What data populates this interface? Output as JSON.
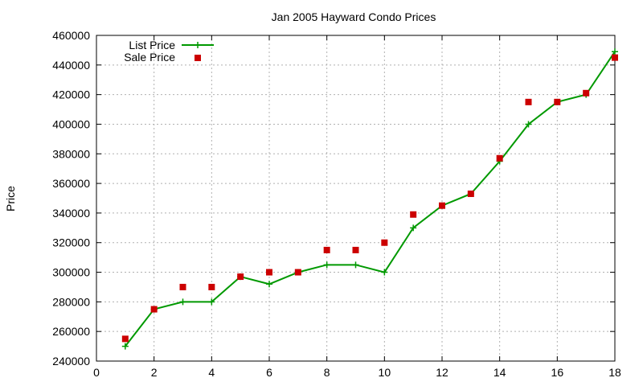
{
  "chart_data": {
    "type": "line",
    "title": "Jan 2005 Hayward Condo Prices",
    "xlabel": "",
    "ylabel": "Price",
    "xlim": [
      0,
      18
    ],
    "ylim": [
      240000,
      460000
    ],
    "x_ticks": [
      0,
      2,
      4,
      6,
      8,
      10,
      12,
      14,
      16,
      18
    ],
    "y_ticks": [
      240000,
      260000,
      280000,
      300000,
      320000,
      340000,
      360000,
      380000,
      400000,
      420000,
      440000,
      460000
    ],
    "grid": true,
    "legend_position": "top-left",
    "x": [
      1,
      2,
      3,
      4,
      5,
      6,
      7,
      8,
      9,
      10,
      11,
      12,
      13,
      14,
      15,
      16,
      17,
      18
    ],
    "series": [
      {
        "name": "List Price",
        "style": "line-with-plus-markers",
        "color": "#009900",
        "values": [
          250000,
          275000,
          280000,
          280000,
          297000,
          292000,
          300000,
          305000,
          305000,
          300000,
          330000,
          345000,
          353000,
          375000,
          400000,
          415000,
          420000,
          449000
        ]
      },
      {
        "name": "Sale Price",
        "style": "square-markers",
        "color": "#cc0000",
        "values": [
          255000,
          275000,
          290000,
          290000,
          297000,
          300000,
          300000,
          315000,
          315000,
          320000,
          339000,
          345000,
          353000,
          377000,
          415000,
          415000,
          421000,
          445000
        ]
      }
    ]
  }
}
